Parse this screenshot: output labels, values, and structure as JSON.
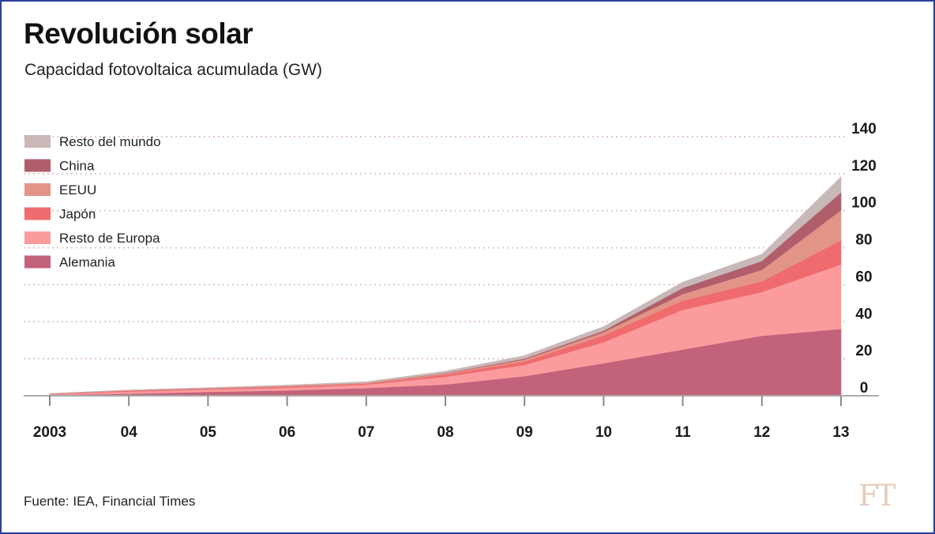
{
  "title": "Revolución solar",
  "subtitle": "Capacidad fotovoltaica acumulada (GW)",
  "source": "Fuente: IEA, Financial Times",
  "logo": "FT",
  "chart_data": {
    "type": "area",
    "stacked": true,
    "title": "Revolución solar",
    "subtitle": "Capacidad fotovoltaica acumulada (GW)",
    "xlabel": "",
    "ylabel": "",
    "x": [
      "2003",
      "04",
      "05",
      "06",
      "07",
      "08",
      "09",
      "10",
      "11",
      "12",
      "13"
    ],
    "ylim": [
      0,
      140
    ],
    "yticks": [
      0,
      20,
      40,
      60,
      80,
      100,
      120,
      140
    ],
    "y_axis_side": "right",
    "grid": "horizontal dotted",
    "legend_position": "top-left",
    "series": [
      {
        "name": "Alemania",
        "color": "#c2627b",
        "values": [
          0.4,
          1.1,
          2.1,
          2.9,
          4.2,
          6.1,
          10.6,
          17.6,
          25.0,
          32.4,
          36.1
        ]
      },
      {
        "name": "Resto de Europa",
        "color": "#fb9b9e",
        "values": [
          0.4,
          1.2,
          1.3,
          1.5,
          1.8,
          4.2,
          6.1,
          11.4,
          21.5,
          23.7,
          34.9
        ]
      },
      {
        "name": "Japón",
        "color": "#ef6b6e",
        "values": [
          0.3,
          0.5,
          0.5,
          0.6,
          0.6,
          1.1,
          1.8,
          3.6,
          4.9,
          5.7,
          13.0
        ]
      },
      {
        "name": "EEUU",
        "color": "#e29487",
        "values": [
          0.0,
          0.1,
          0.2,
          0.4,
          0.4,
          0.7,
          1.1,
          1.8,
          3.6,
          6.3,
          16.4
        ]
      },
      {
        "name": "China",
        "color": "#b05e6b",
        "values": [
          0.0,
          0.0,
          0.0,
          0.0,
          0.0,
          0.2,
          0.5,
          0.8,
          3.3,
          4.7,
          9.5
        ]
      },
      {
        "name": "Resto del mundo",
        "color": "#c9b8b8",
        "values": [
          0.2,
          0.2,
          0.3,
          0.4,
          0.6,
          1.0,
          1.6,
          2.2,
          3.1,
          3.7,
          8.4
        ]
      }
    ]
  }
}
